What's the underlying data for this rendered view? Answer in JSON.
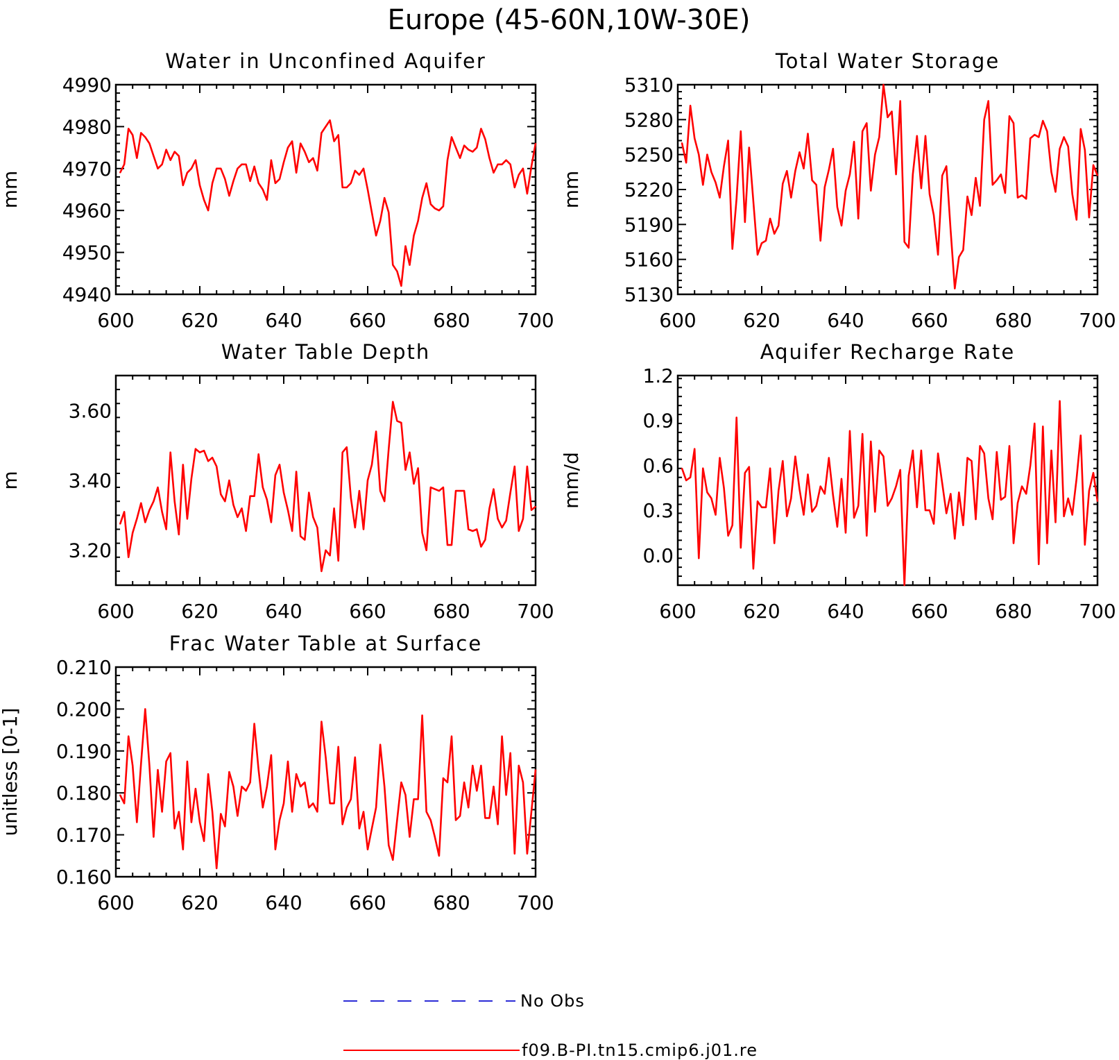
{
  "figure_title": "Europe (45-60N,10W-30E)",
  "legend": {
    "entries": [
      {
        "label": "No Obs",
        "color": "#2b2bd6",
        "style": "dashed"
      },
      {
        "label": "f09.B-PI.tn15.cmip6.j01.re",
        "color": "#ff0000",
        "style": "solid"
      }
    ]
  },
  "colors": {
    "series": "#ff0000",
    "no_obs": "#2b2bd6",
    "axes": "#000000"
  },
  "chart_data": [
    {
      "type": "line",
      "title": "Water in Unconfined Aquifer",
      "xlabel": "",
      "ylabel": "mm",
      "xlim": [
        600,
        700
      ],
      "ylim": [
        4940,
        4990
      ],
      "xticks": [
        600,
        620,
        640,
        660,
        680,
        700
      ],
      "yticks": [
        4940,
        4950,
        4960,
        4970,
        4980,
        4990
      ],
      "ytick_labels": [
        "4940",
        "4950",
        "4960",
        "4970",
        "4980",
        "4990"
      ],
      "series": [
        {
          "color": "#ff0000",
          "x_start": 601,
          "x_step": 1,
          "values": [
            4969,
            4971,
            4979.5,
            4978,
            4972.5,
            4978.5,
            4977.5,
            4976,
            4973,
            4970,
            4971,
            4974.5,
            4972,
            4974,
            4973,
            4966,
            4969,
            4970,
            4972,
            4966,
            4962.5,
            4960,
            4966.5,
            4970,
            4970,
            4967.5,
            4963.5,
            4967,
            4970,
            4971,
            4971,
            4967,
            4970.5,
            4966.5,
            4965,
            4962.5,
            4972,
            4966.5,
            4967.5,
            4971.5,
            4975,
            4976.5,
            4969,
            4976,
            4974,
            4971.5,
            4972.5,
            4969.5,
            4978.5,
            4980,
            4981.5,
            4976.5,
            4978,
            4965.5,
            4965.5,
            4966.5,
            4969.5,
            4968.5,
            4970,
            4965,
            4959.5,
            4954,
            4957.5,
            4963,
            4959.5,
            4947,
            4945.5,
            4942,
            4951.5,
            4947,
            4954,
            4957.5,
            4963,
            4966.5,
            4961.5,
            4960.5,
            4960,
            4961,
            4972,
            4977.5,
            4975,
            4972.5,
            4975.5,
            4974.5,
            4974,
            4975,
            4979.5,
            4977,
            4972.5,
            4969,
            4971,
            4971,
            4972,
            4971,
            4965.5,
            4968.5,
            4970,
            4964,
            4970.5,
            4976
          ]
        }
      ]
    },
    {
      "type": "line",
      "title": "Total Water Storage",
      "xlabel": "",
      "ylabel": "mm",
      "xlim": [
        600,
        700
      ],
      "ylim": [
        5130,
        5310
      ],
      "xticks": [
        600,
        620,
        640,
        660,
        680,
        700
      ],
      "yticks": [
        5130,
        5160,
        5190,
        5220,
        5250,
        5280,
        5310
      ],
      "ytick_labels": [
        "5130",
        "5160",
        "5190",
        "5220",
        "5250",
        "5280",
        "5310"
      ],
      "series": [
        {
          "color": "#ff0000",
          "x_start": 601,
          "x_step": 1,
          "values": [
            5260,
            5243,
            5292,
            5264,
            5250,
            5224,
            5250,
            5235,
            5226,
            5213,
            5240,
            5262,
            5169,
            5212,
            5270,
            5192,
            5256,
            5210,
            5164,
            5174,
            5176,
            5195,
            5182,
            5189,
            5225,
            5236,
            5213,
            5236,
            5252,
            5238,
            5268,
            5228,
            5224,
            5176,
            5222,
            5237,
            5255,
            5205,
            5189,
            5219,
            5233,
            5261,
            5195,
            5270,
            5277,
            5219,
            5250,
            5265,
            5310,
            5282,
            5287,
            5233,
            5296,
            5175,
            5170,
            5233,
            5266,
            5221,
            5266,
            5216,
            5198,
            5164,
            5232,
            5240,
            5185,
            5135,
            5162,
            5168,
            5214,
            5198,
            5230,
            5206,
            5280,
            5296,
            5224,
            5228,
            5233,
            5217,
            5283,
            5277,
            5213,
            5215,
            5212,
            5264,
            5267,
            5265,
            5279,
            5270,
            5235,
            5218,
            5255,
            5265,
            5257,
            5216,
            5194,
            5272,
            5254,
            5196,
            5241,
            5232
          ]
        }
      ]
    },
    {
      "type": "line",
      "title": "Water Table Depth",
      "xlabel": "",
      "ylabel": "m",
      "xlim": [
        600,
        700
      ],
      "ylim": [
        3.1,
        3.7
      ],
      "xticks": [
        600,
        620,
        640,
        660,
        680,
        700
      ],
      "yticks": [
        3.2,
        3.4,
        3.6
      ],
      "ytick_labels": [
        "3.20",
        "3.40",
        "3.60"
      ],
      "series": [
        {
          "color": "#ff0000",
          "x_start": 601,
          "x_step": 1,
          "values": [
            3.275,
            3.31,
            3.18,
            3.25,
            3.29,
            3.335,
            3.28,
            3.315,
            3.34,
            3.38,
            3.31,
            3.26,
            3.48,
            3.34,
            3.245,
            3.445,
            3.29,
            3.405,
            3.49,
            3.48,
            3.485,
            3.455,
            3.465,
            3.44,
            3.36,
            3.34,
            3.4,
            3.33,
            3.295,
            3.32,
            3.255,
            3.355,
            3.355,
            3.475,
            3.38,
            3.345,
            3.28,
            3.415,
            3.445,
            3.365,
            3.315,
            3.255,
            3.425,
            3.24,
            3.23,
            3.365,
            3.295,
            3.265,
            3.14,
            3.2,
            3.185,
            3.32,
            3.17,
            3.48,
            3.495,
            3.35,
            3.265,
            3.37,
            3.26,
            3.4,
            3.445,
            3.54,
            3.37,
            3.34,
            3.49,
            3.625,
            3.57,
            3.565,
            3.43,
            3.48,
            3.39,
            3.435,
            3.25,
            3.2,
            3.38,
            3.375,
            3.37,
            3.38,
            3.215,
            3.215,
            3.37,
            3.37,
            3.37,
            3.26,
            3.255,
            3.26,
            3.21,
            3.23,
            3.32,
            3.375,
            3.29,
            3.265,
            3.285,
            3.365,
            3.44,
            3.255,
            3.29,
            3.44,
            3.315,
            3.325
          ]
        }
      ]
    },
    {
      "type": "line",
      "title": "Aquifer Recharge Rate",
      "xlabel": "",
      "ylabel": "mm/d",
      "xlim": [
        600,
        700
      ],
      "ylim": [
        -0.2,
        1.2
      ],
      "xticks": [
        600,
        620,
        640,
        660,
        680,
        700
      ],
      "yticks": [
        0.0,
        0.3,
        0.6,
        0.9,
        1.2
      ],
      "ytick_labels": [
        "0.0",
        "0.3",
        "0.6",
        "0.9",
        "1.2"
      ],
      "series": [
        {
          "color": "#ff0000",
          "x_start": 601,
          "x_step": 1,
          "values": [
            0.58,
            0.5,
            0.52,
            0.71,
            -0.02,
            0.58,
            0.42,
            0.38,
            0.27,
            0.65,
            0.45,
            0.13,
            0.2,
            0.92,
            0.05,
            0.55,
            0.59,
            -0.09,
            0.36,
            0.32,
            0.32,
            0.58,
            0.08,
            0.43,
            0.63,
            0.26,
            0.38,
            0.66,
            0.44,
            0.27,
            0.54,
            0.29,
            0.33,
            0.46,
            0.41,
            0.65,
            0.4,
            0.19,
            0.51,
            0.15,
            0.83,
            0.25,
            0.33,
            0.81,
            0.13,
            0.76,
            0.29,
            0.7,
            0.66,
            0.33,
            0.38,
            0.46,
            0.57,
            -0.2,
            0.53,
            0.7,
            0.32,
            0.7,
            0.3,
            0.3,
            0.21,
            0.68,
            0.48,
            0.28,
            0.41,
            0.11,
            0.42,
            0.2,
            0.65,
            0.63,
            0.24,
            0.73,
            0.68,
            0.38,
            0.24,
            0.69,
            0.37,
            0.39,
            0.73,
            0.08,
            0.35,
            0.46,
            0.41,
            0.6,
            0.88,
            -0.06,
            0.86,
            0.08,
            0.7,
            0.22,
            1.03,
            0.26,
            0.38,
            0.27,
            0.51,
            0.8,
            0.07,
            0.43,
            0.55,
            0.36
          ]
        }
      ]
    },
    {
      "type": "line",
      "title": "Frac Water Table at Surface",
      "xlabel": "",
      "ylabel": "unitless [0-1]",
      "xlim": [
        600,
        700
      ],
      "ylim": [
        0.16,
        0.21
      ],
      "xticks": [
        600,
        620,
        640,
        660,
        680,
        700
      ],
      "yticks": [
        0.16,
        0.17,
        0.18,
        0.19,
        0.2,
        0.21
      ],
      "ytick_labels": [
        "0.160",
        "0.170",
        "0.180",
        "0.190",
        "0.200",
        "0.210"
      ],
      "series": [
        {
          "color": "#ff0000",
          "x_start": 601,
          "x_step": 1,
          "values": [
            0.1795,
            0.1775,
            0.1935,
            0.1865,
            0.173,
            0.187,
            0.2,
            0.1865,
            0.1695,
            0.1855,
            0.1755,
            0.1875,
            0.1895,
            0.1715,
            0.1755,
            0.1665,
            0.1875,
            0.173,
            0.181,
            0.173,
            0.1685,
            0.1845,
            0.1755,
            0.162,
            0.175,
            0.172,
            0.185,
            0.1815,
            0.1745,
            0.1815,
            0.1805,
            0.1825,
            0.1965,
            0.1855,
            0.1765,
            0.1815,
            0.189,
            0.1665,
            0.1735,
            0.1775,
            0.1875,
            0.1755,
            0.1845,
            0.1815,
            0.1825,
            0.1765,
            0.1775,
            0.1755,
            0.197,
            0.1885,
            0.1775,
            0.1775,
            0.191,
            0.1725,
            0.1765,
            0.1785,
            0.1885,
            0.1715,
            0.1755,
            0.1665,
            0.1715,
            0.1765,
            0.1915,
            0.1815,
            0.1675,
            0.164,
            0.1735,
            0.1825,
            0.1795,
            0.1695,
            0.1785,
            0.1785,
            0.1985,
            0.1755,
            0.1735,
            0.1695,
            0.165,
            0.1835,
            0.1825,
            0.1935,
            0.1735,
            0.1745,
            0.1825,
            0.1765,
            0.1865,
            0.1805,
            0.1865,
            0.174,
            0.174,
            0.1815,
            0.1725,
            0.1935,
            0.1795,
            0.1895,
            0.1655,
            0.1865,
            0.1825,
            0.1655,
            0.1755,
            0.1855
          ]
        }
      ]
    }
  ]
}
